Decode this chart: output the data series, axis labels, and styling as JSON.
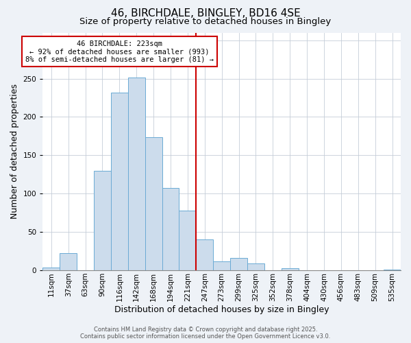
{
  "title": "46, BIRCHDALE, BINGLEY, BD16 4SE",
  "subtitle": "Size of property relative to detached houses in Bingley",
  "xlabel": "Distribution of detached houses by size in Bingley",
  "ylabel": "Number of detached properties",
  "bin_labels": [
    "11sqm",
    "37sqm",
    "63sqm",
    "90sqm",
    "116sqm",
    "142sqm",
    "168sqm",
    "194sqm",
    "221sqm",
    "247sqm",
    "273sqm",
    "299sqm",
    "325sqm",
    "352sqm",
    "378sqm",
    "404sqm",
    "430sqm",
    "456sqm",
    "483sqm",
    "509sqm",
    "535sqm"
  ],
  "bar_heights": [
    4,
    22,
    0,
    130,
    232,
    251,
    174,
    107,
    78,
    40,
    12,
    16,
    9,
    0,
    3,
    0,
    0,
    0,
    0,
    0,
    1
  ],
  "bar_color": "#ccdcec",
  "bar_edge_color": "#6aaad4",
  "vline_x_index": 8.5,
  "vline_color": "#cc0000",
  "annotation_title": "46 BIRCHDALE: 223sqm",
  "annotation_line1": "← 92% of detached houses are smaller (993)",
  "annotation_line2": "8% of semi-detached houses are larger (81) →",
  "annotation_box_color": "#cc0000",
  "annotation_bg": "#ffffff",
  "ylim": [
    0,
    310
  ],
  "yticks": [
    0,
    50,
    100,
    150,
    200,
    250,
    300
  ],
  "footer1": "Contains HM Land Registry data © Crown copyright and database right 2025.",
  "footer2": "Contains public sector information licensed under the Open Government Licence v3.0.",
  "bg_color": "#eef2f7",
  "plot_bg_color": "#ffffff",
  "title_fontsize": 11,
  "subtitle_fontsize": 9.5,
  "label_fontsize": 9,
  "tick_fontsize": 7.5,
  "footer_fontsize": 6
}
